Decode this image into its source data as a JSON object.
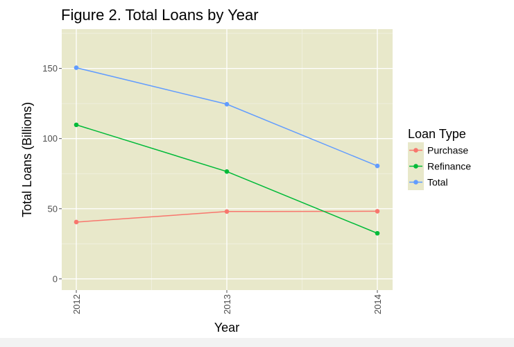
{
  "chart_data": {
    "type": "line",
    "title": "Figure 2. Total Loans by Year",
    "xlabel": "Year",
    "ylabel": "Total Loans (Billions)",
    "categories": [
      "2012",
      "2013",
      "2014"
    ],
    "y_ticks": [
      "0",
      "50",
      "100",
      "150"
    ],
    "ylim": [
      -8,
      178
    ],
    "grid": true,
    "legend_title": "Loan Type",
    "legend_position": "right",
    "panel_color": "#e8e8ca",
    "series": [
      {
        "name": "Purchase",
        "color": "#f8766d",
        "values": [
          40.5,
          48,
          48.2
        ]
      },
      {
        "name": "Refinance",
        "color": "#00ba38",
        "values": [
          109.8,
          76.5,
          32.5
        ]
      },
      {
        "name": "Total",
        "color": "#619cff",
        "values": [
          150.5,
          124.5,
          80.5
        ]
      }
    ]
  }
}
